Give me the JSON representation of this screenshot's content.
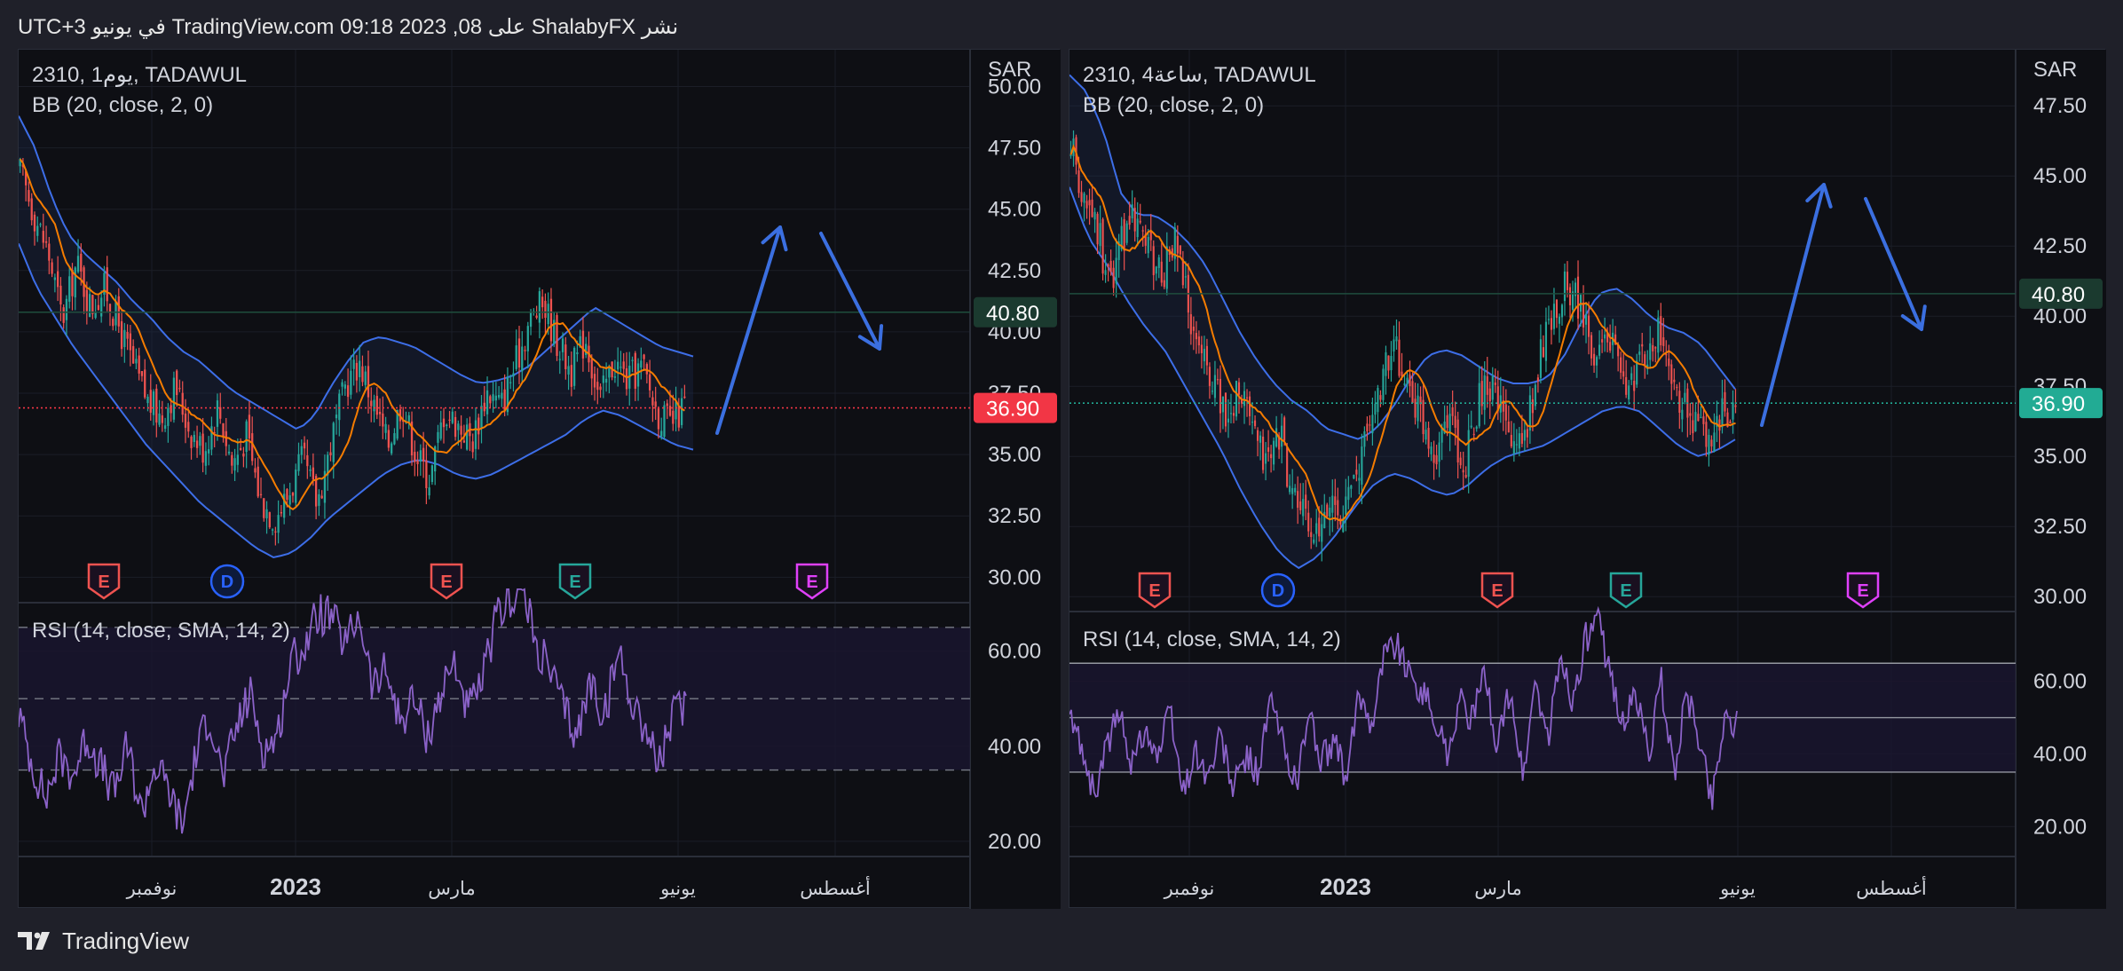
{
  "header": {
    "text": "نشر ShalabyFX على TradingView.com 09:18 2023 ,08 في يونيو UTC+3"
  },
  "footer": {
    "brand": "TradingView",
    "logo_icon": "tradingview-logo-icon"
  },
  "colors": {
    "background": "#0e0f14",
    "grid": "#1b1e27",
    "price_up": "#26a69a",
    "price_down": "#ef5350",
    "bb_band": "#3d6ee8",
    "bb_basis": "#f57c00",
    "rsi_line": "#8b62c8",
    "arrow": "#3b6fe0",
    "last_price_red": "#f23645",
    "last_price_teal": "#22ab94",
    "level_label_bg": "#1b3a2f"
  },
  "chart_data": [
    {
      "type": "candlestick",
      "symbol_label": "2310, 1يوم, TADAWUL",
      "indicator_label": "BB (20, close, 2, 0)",
      "currency": "SAR",
      "price_ticks": [
        "50.00",
        "47.50",
        "45.00",
        "42.50",
        "40.00",
        "37.50",
        "35.00",
        "32.50",
        "30.00"
      ],
      "price_tick_values": [
        50,
        47.5,
        45,
        42.5,
        40,
        37.5,
        35,
        32.5,
        30
      ],
      "ylim": [
        29.0,
        51.5
      ],
      "last_price": "36.90",
      "last_price_value": 36.9,
      "level_label": "40.80",
      "level_value": 40.8,
      "last_price_color": "red",
      "close_path": [
        46.5,
        44.8,
        43.2,
        40.5,
        42.8,
        41.0,
        41.8,
        40.2,
        38.6,
        37.2,
        36.5,
        37.8,
        36.0,
        35.2,
        37.0,
        34.6,
        35.8,
        33.2,
        32.4,
        33.4,
        34.8,
        33.0,
        35.5,
        37.8,
        38.8,
        37.0,
        35.4,
        37.2,
        35.0,
        34.0,
        36.8,
        36.2,
        35.6,
        37.6,
        37.0,
        38.6,
        40.4,
        41.2,
        39.6,
        38.4,
        39.8,
        37.2,
        38.8,
        38.0,
        38.6,
        36.8,
        36.2,
        37.0
      ],
      "bb_upper": [
        48.8,
        47.5,
        45.5,
        44.0,
        43.2,
        42.6,
        42.0,
        41.2,
        40.6,
        39.8,
        39.2,
        38.8,
        38.2,
        37.6,
        37.2,
        36.8,
        36.4,
        36.0,
        36.6,
        37.8,
        38.8,
        39.6,
        39.8,
        39.6,
        39.4,
        39.0,
        38.6,
        38.2,
        37.9,
        38.0,
        38.2,
        38.6,
        39.2,
        39.8,
        40.4,
        41.0,
        40.6,
        40.2,
        39.8,
        39.4,
        39.2,
        39.0
      ],
      "bb_lower": [
        43.6,
        41.8,
        40.6,
        39.4,
        38.4,
        37.4,
        36.4,
        35.4,
        34.6,
        33.8,
        33.0,
        32.4,
        31.8,
        31.2,
        30.8,
        31.0,
        31.6,
        32.4,
        33.0,
        33.6,
        34.2,
        34.6,
        34.8,
        34.6,
        34.2,
        34.0,
        34.2,
        34.6,
        35.0,
        35.4,
        35.8,
        36.4,
        36.8,
        36.6,
        36.2,
        35.8,
        35.4,
        35.2
      ],
      "x_labels": [
        "نوفمبر",
        "2023",
        "مارس",
        "يونيو",
        "أغسطس"
      ],
      "x_label_bold": [
        false,
        true,
        false,
        false,
        false
      ],
      "event_markers": [
        {
          "letter": "E",
          "color": "#ef5350"
        },
        {
          "letter": "D",
          "color": "#2962ff"
        },
        {
          "letter": "E",
          "color": "#ef5350"
        },
        {
          "letter": "E",
          "color": "#26a69a"
        },
        {
          "letter": "E",
          "color": "#e040fb"
        }
      ],
      "rsi": {
        "label": "RSI (14, close, SMA, 14, 2)",
        "ticks": [
          "60.00",
          "40.00",
          "20.00"
        ],
        "tick_values": [
          60,
          40,
          20
        ],
        "ylim": [
          17,
          70
        ],
        "upper_band": 65,
        "middle": 50,
        "lower_band": 35,
        "values": [
          47,
          36,
          29,
          38,
          34,
          42,
          36,
          30,
          40,
          26,
          36,
          31,
          23,
          38,
          47,
          33,
          44,
          51,
          39,
          42,
          58,
          61,
          68,
          67,
          61,
          68,
          52,
          56,
          45,
          50,
          42,
          51,
          58,
          47,
          53,
          66,
          71,
          73,
          61,
          56,
          48,
          42,
          54,
          46,
          60,
          50,
          44,
          36,
          46,
          49
        ]
      }
    },
    {
      "type": "candlestick",
      "symbol_label": "2310, 4ساعة, TADAWUL",
      "indicator_label": "BB (20, close, 2, 0)",
      "currency": "SAR",
      "price_ticks": [
        "47.50",
        "45.00",
        "42.50",
        "40.00",
        "37.50",
        "35.00",
        "32.50",
        "30.00"
      ],
      "price_tick_values": [
        47.5,
        45,
        42.5,
        40,
        37.5,
        35,
        32.5,
        30
      ],
      "ylim": [
        29.5,
        49.5
      ],
      "last_price": "36.90",
      "last_price_value": 36.9,
      "level_label": "40.80",
      "level_value": 40.8,
      "last_price_color": "teal",
      "close_path": [
        46.0,
        44.4,
        43.2,
        41.0,
        42.8,
        43.8,
        42.2,
        41.4,
        42.6,
        40.4,
        38.6,
        37.6,
        36.2,
        37.8,
        35.6,
        34.6,
        35.8,
        33.8,
        32.6,
        31.8,
        33.4,
        33.0,
        34.4,
        36.2,
        38.0,
        38.8,
        37.2,
        36.2,
        35.0,
        36.8,
        34.2,
        36.6,
        37.8,
        36.6,
        35.2,
        36.2,
        38.6,
        40.2,
        41.2,
        40.4,
        38.8,
        39.6,
        38.4,
        37.4,
        38.6,
        39.4,
        37.6,
        36.8,
        36.4,
        35.2,
        36.4,
        37.0
      ],
      "bb_upper": [
        48.6,
        48.0,
        46.6,
        44.4,
        43.6,
        43.6,
        43.2,
        42.6,
        41.8,
        40.6,
        39.4,
        38.4,
        37.6,
        37.0,
        36.6,
        36.0,
        35.8,
        35.6,
        36.0,
        36.8,
        37.8,
        38.6,
        38.8,
        38.6,
        38.2,
        37.8,
        37.6,
        37.6,
        37.8,
        38.6,
        39.8,
        40.8,
        41.0,
        40.6,
        40.0,
        39.6,
        39.4,
        39.0,
        38.2,
        37.4
      ],
      "bb_lower": [
        44.6,
        42.8,
        41.8,
        40.6,
        39.6,
        38.8,
        37.6,
        36.4,
        35.2,
        33.8,
        32.6,
        31.6,
        31.0,
        31.4,
        32.2,
        33.2,
        34.0,
        34.4,
        34.2,
        33.8,
        33.6,
        34.0,
        34.6,
        35.0,
        35.2,
        35.4,
        35.8,
        36.2,
        36.6,
        36.8,
        36.6,
        36.0,
        35.4,
        35.0,
        35.2,
        35.6
      ],
      "x_labels": [
        "نوفمبر",
        "2023",
        "مارس",
        "يونيو",
        "أغسطس"
      ],
      "x_label_bold": [
        false,
        true,
        false,
        false,
        false
      ],
      "event_markers": [
        {
          "letter": "E",
          "color": "#ef5350"
        },
        {
          "letter": "D",
          "color": "#2962ff"
        },
        {
          "letter": "E",
          "color": "#ef5350"
        },
        {
          "letter": "E",
          "color": "#26a69a"
        },
        {
          "letter": "E",
          "color": "#e040fb"
        }
      ],
      "rsi": {
        "label": "RSI (14, close, SMA, 14, 2)",
        "ticks": [
          "60.00",
          "40.00",
          "20.00"
        ],
        "tick_values": [
          60,
          40,
          20
        ],
        "ylim": [
          12,
          79
        ],
        "upper_band": 65,
        "middle": 50,
        "lower_band": 35,
        "values": [
          50,
          42,
          28,
          43,
          51,
          37,
          48,
          39,
          52,
          29,
          41,
          33,
          45,
          30,
          39,
          35,
          55,
          42,
          32,
          51,
          38,
          44,
          32,
          57,
          49,
          68,
          71,
          61,
          58,
          50,
          40,
          55,
          49,
          62,
          42,
          58,
          33,
          60,
          43,
          67,
          54,
          72,
          76,
          61,
          48,
          56,
          40,
          60,
          34,
          56,
          45,
          27,
          50,
          49
        ]
      }
    }
  ]
}
